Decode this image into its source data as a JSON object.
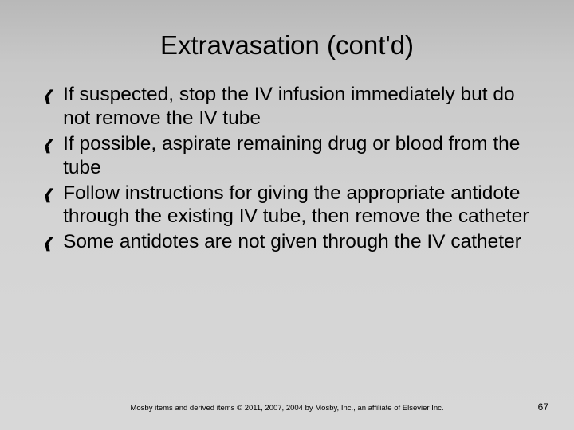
{
  "title": "Extravasation (cont'd)",
  "bullets": [
    "If suspected, stop the IV infusion immediately but do not remove the IV tube",
    "If possible, aspirate remaining drug or blood from the tube",
    "Follow instructions for giving the appropriate antidote through the existing IV tube, then remove the catheter",
    "Some antidotes are not given through the IV catheter"
  ],
  "footer_text": "Mosby items and derived items © 2011, 2007, 2004 by Mosby, Inc., an affiliate of Elsevier Inc.",
  "page_number": "67",
  "styling": {
    "background_gradient_start": "#b8b8b8",
    "background_gradient_end": "#d8d8d8",
    "title_fontsize": 33,
    "body_fontsize": 24.5,
    "footer_fontsize": 9.5,
    "pagenum_fontsize": 12,
    "text_color": "#000000",
    "font_family": "Arial"
  }
}
